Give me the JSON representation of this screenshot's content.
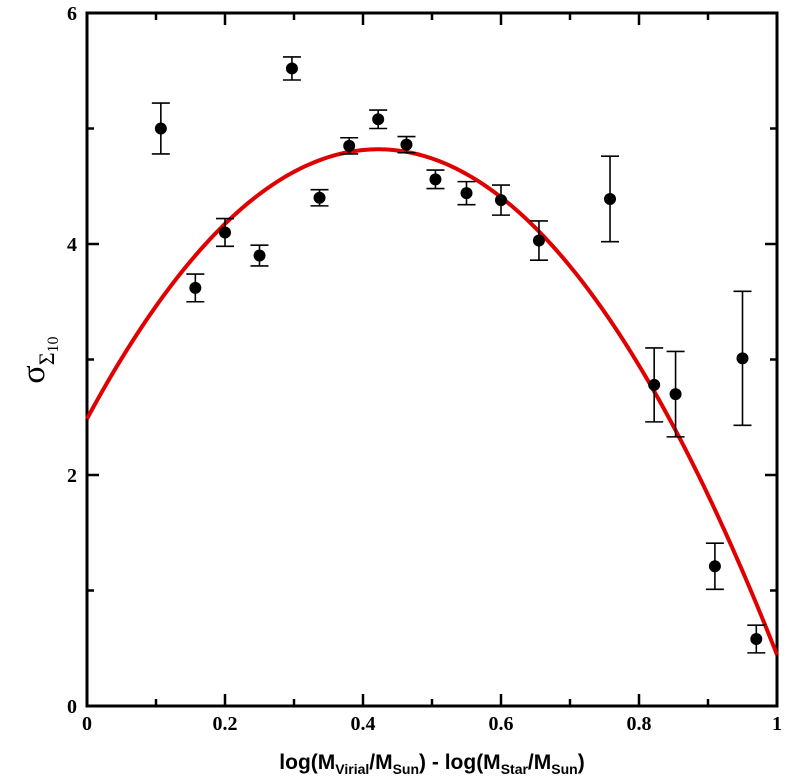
{
  "chart_data": {
    "type": "scatter",
    "xlabel": {
      "prefix": "log(M",
      "sub1": "Virial",
      "mid1": "/M",
      "sub2": "Sun",
      "mid2": ") - log(M",
      "sub3": "Star",
      "mid3": "/M",
      "sub4": "Sun",
      "suffix": ")"
    },
    "ylabel": {
      "main": "σ",
      "sub": "Σ",
      "subsub": "10"
    },
    "xlim": [
      0,
      1
    ],
    "ylim": [
      0,
      6
    ],
    "x_ticks": [
      0,
      0.2,
      0.4,
      0.6,
      0.8,
      1
    ],
    "x_tick_labels": [
      "0",
      "0.2",
      "0.4",
      "0.6",
      "0.8",
      "1"
    ],
    "y_ticks": [
      0,
      2,
      4,
      6
    ],
    "y_tick_labels": [
      "0",
      "2",
      "4",
      "6"
    ],
    "grid": false,
    "legend": "none",
    "series": [
      {
        "kind": "points-with-errorbars",
        "color": "#000000",
        "points": [
          {
            "x": 0.107,
            "y": 5.0,
            "err": 0.22
          },
          {
            "x": 0.157,
            "y": 3.62,
            "err": 0.12
          },
          {
            "x": 0.2,
            "y": 4.1,
            "err": 0.12
          },
          {
            "x": 0.25,
            "y": 3.9,
            "err": 0.09
          },
          {
            "x": 0.297,
            "y": 5.52,
            "err": 0.1
          },
          {
            "x": 0.337,
            "y": 4.4,
            "err": 0.07
          },
          {
            "x": 0.38,
            "y": 4.85,
            "err": 0.07
          },
          {
            "x": 0.422,
            "y": 5.08,
            "err": 0.08
          },
          {
            "x": 0.463,
            "y": 4.86,
            "err": 0.07
          },
          {
            "x": 0.505,
            "y": 4.56,
            "err": 0.08
          },
          {
            "x": 0.55,
            "y": 4.44,
            "err": 0.1
          },
          {
            "x": 0.6,
            "y": 4.38,
            "err": 0.13
          },
          {
            "x": 0.655,
            "y": 4.03,
            "err": 0.17
          },
          {
            "x": 0.758,
            "y": 4.39,
            "err": 0.37
          },
          {
            "x": 0.822,
            "y": 2.78,
            "err": 0.32
          },
          {
            "x": 0.853,
            "y": 2.7,
            "err": 0.37
          },
          {
            "x": 0.91,
            "y": 1.21,
            "err": 0.2
          },
          {
            "x": 0.95,
            "y": 3.01,
            "err": 0.58
          },
          {
            "x": 0.97,
            "y": 0.58,
            "err": 0.12
          }
        ]
      },
      {
        "kind": "fit-curve",
        "color": "#e00000",
        "model": "quadratic",
        "coefficients": {
          "a": -13.1,
          "x0": 0.422,
          "ymax": 4.82
        },
        "x_range": [
          0,
          1
        ]
      }
    ]
  }
}
